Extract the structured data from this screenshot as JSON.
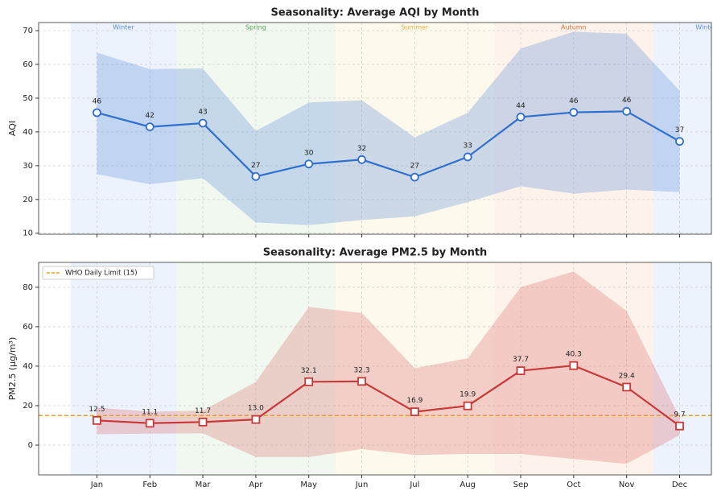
{
  "chart_data": [
    {
      "type": "line",
      "title": "Seasonality: Average AQI by Month",
      "ylabel": "AQI",
      "values": [
        45.7,
        41.5,
        42.6,
        26.8,
        30.5,
        31.8,
        26.6,
        32.6,
        44.4,
        45.8,
        46.1,
        37.2
      ],
      "value_labels": [
        "46",
        "42",
        "43",
        "27",
        "30",
        "32",
        "27",
        "33",
        "44",
        "46",
        "46",
        "37"
      ],
      "color": "#2f6fce",
      "marker": "circle",
      "band": {
        "upper": [
          63.5,
          58.6,
          58.8,
          40.3,
          48.7,
          49.4,
          38.4,
          45.7,
          64.7,
          69.7,
          69.1,
          52.2
        ],
        "lower": [
          27.5,
          24.5,
          26.3,
          13.2,
          12.4,
          13.9,
          15.0,
          19.2,
          23.9,
          21.7,
          22.9,
          22.2
        ],
        "color": "#4f86d8"
      },
      "xlim": [
        -1.1,
        11.6
      ],
      "ylim": [
        9.7,
        72.4
      ],
      "yticks": [
        10,
        20,
        30,
        40,
        50,
        60,
        70
      ],
      "grid": true,
      "seasons": [
        {
          "label": "Winter",
          "start": -0.5,
          "end": 1.5,
          "color": "#dce8fb",
          "label_color": "#5b8ed6"
        },
        {
          "label": "Spring",
          "start": 1.5,
          "end": 4.5,
          "color": "#e4f1e1",
          "label_color": "#5aa05a"
        },
        {
          "label": "Summer",
          "start": 4.5,
          "end": 7.5,
          "color": "#fdf3dc",
          "label_color": "#f0b040"
        },
        {
          "label": "Autumn",
          "start": 7.5,
          "end": 10.5,
          "color": "#fde7d8",
          "label_color": "#e07040"
        },
        {
          "label": "Winter",
          "start": 10.5,
          "end": 12.5,
          "color": "#dce8fb",
          "label_color": "#5b8ed6"
        }
      ]
    },
    {
      "type": "line",
      "title": "Seasonality: Average PM2.5 by Month",
      "ylabel": "PM2.5 (µg/m³)",
      "categories": [
        "Jan",
        "Feb",
        "Mar",
        "Apr",
        "May",
        "Jun",
        "Jul",
        "Aug",
        "Sep",
        "Oct",
        "Nov",
        "Dec"
      ],
      "values": [
        12.5,
        11.1,
        11.7,
        13.0,
        32.1,
        32.3,
        16.9,
        19.9,
        37.7,
        40.3,
        29.4,
        9.7
      ],
      "value_labels": [
        "12.5",
        "11.1",
        "11.7",
        "13.0",
        "32.1",
        "32.3",
        "16.9",
        "19.9",
        "37.7",
        "40.3",
        "29.4",
        "9.7"
      ],
      "color": "#c83a3a",
      "marker": "square",
      "band": {
        "upper": [
          19,
          17,
          17.5,
          32,
          70,
          67,
          39,
          44,
          80,
          88,
          68,
          14
        ],
        "lower": [
          5.5,
          5.8,
          6,
          -6,
          -6,
          -2,
          -5,
          -4.5,
          -4.5,
          -7,
          -9.5,
          5
        ],
        "color": "#d86060"
      },
      "xlim": [
        -1.1,
        11.6
      ],
      "ylim": [
        -15.1,
        92.6
      ],
      "yticks": [
        0,
        20,
        40,
        60,
        80
      ],
      "grid": true,
      "hline": {
        "value": 15,
        "label": "WHO Daily Limit (15)",
        "color": "#f0a020"
      },
      "legend": "upper left",
      "seasons": [
        {
          "start": -0.5,
          "end": 1.5,
          "color": "#dce8fb"
        },
        {
          "start": 1.5,
          "end": 4.5,
          "color": "#e4f1e1"
        },
        {
          "start": 4.5,
          "end": 7.5,
          "color": "#fdf3dc"
        },
        {
          "start": 7.5,
          "end": 10.5,
          "color": "#fde7d8"
        },
        {
          "start": 10.5,
          "end": 12.5,
          "color": "#dce8fb"
        }
      ]
    }
  ]
}
